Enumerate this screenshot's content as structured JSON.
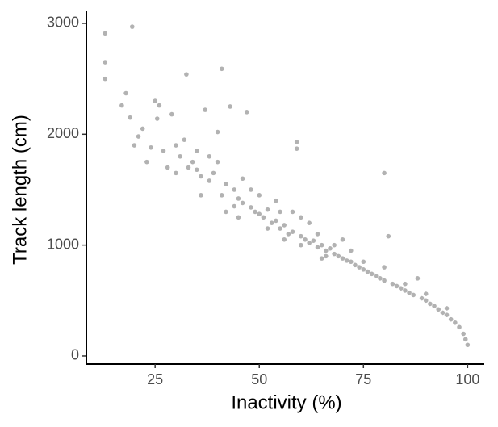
{
  "chart_data": {
    "type": "scatter",
    "x_label": "Inactivity (%)",
    "y_label": "Track length (cm)",
    "xlim": [
      8.5,
      104
    ],
    "ylim": [
      -73,
      3109
    ],
    "xticks": [
      25,
      50,
      75,
      100
    ],
    "yticks": [
      0,
      1000,
      2000,
      3000
    ],
    "color": "#000000",
    "x": [
      13,
      13,
      13,
      19.5,
      17,
      18,
      19,
      20,
      21,
      22,
      23,
      24,
      25,
      25.5,
      26,
      27,
      28,
      29,
      30,
      31,
      32,
      32.5,
      33,
      34,
      35,
      36,
      37,
      38,
      39,
      40,
      41,
      41,
      42,
      43,
      44,
      45,
      46,
      47,
      48,
      49,
      50,
      51,
      52,
      53,
      54,
      55,
      56,
      57,
      58,
      59,
      59,
      60,
      61,
      62,
      63,
      64,
      65,
      66,
      67,
      68,
      69,
      70,
      71,
      72,
      73,
      74,
      75,
      76,
      77,
      78,
      79,
      80,
      80,
      81,
      82,
      83,
      84,
      85,
      86,
      87,
      88,
      89,
      90,
      91,
      92,
      93,
      94,
      95,
      96,
      97,
      98,
      99,
      99.5,
      100,
      36,
      38,
      44,
      46,
      48,
      52,
      54,
      56,
      58,
      62,
      64,
      66,
      45,
      50,
      55,
      60,
      65,
      70,
      75,
      80,
      30,
      35,
      40,
      42,
      60,
      68,
      72,
      85,
      90,
      95
    ],
    "y": [
      2910,
      2650,
      2500,
      2970,
      2260,
      2370,
      2150,
      1900,
      1980,
      2050,
      1750,
      1880,
      2300,
      2140,
      2260,
      1850,
      1700,
      2180,
      1900,
      1800,
      1950,
      2540,
      1700,
      1750,
      1680,
      1620,
      2220,
      1580,
      1650,
      2020,
      2590,
      1450,
      1550,
      2250,
      1500,
      1420,
      1380,
      2200,
      1340,
      1300,
      1280,
      1250,
      1320,
      1200,
      1220,
      1150,
      1180,
      1100,
      1120,
      1930,
      1870,
      1080,
      1050,
      1020,
      1040,
      980,
      1000,
      950,
      970,
      920,
      900,
      880,
      860,
      850,
      820,
      800,
      780,
      760,
      740,
      720,
      700,
      680,
      1650,
      1080,
      650,
      630,
      610,
      590,
      570,
      550,
      700,
      520,
      500,
      470,
      450,
      420,
      390,
      370,
      330,
      300,
      260,
      200,
      150,
      100,
      1450,
      1800,
      1350,
      1600,
      1500,
      1150,
      1400,
      1050,
      1300,
      1200,
      1100,
      900,
      1250,
      1450,
      1300,
      1250,
      880,
      1050,
      850,
      800,
      1650,
      1850,
      1750,
      1300,
      1000,
      1000,
      950,
      650,
      560,
      430
    ]
  }
}
